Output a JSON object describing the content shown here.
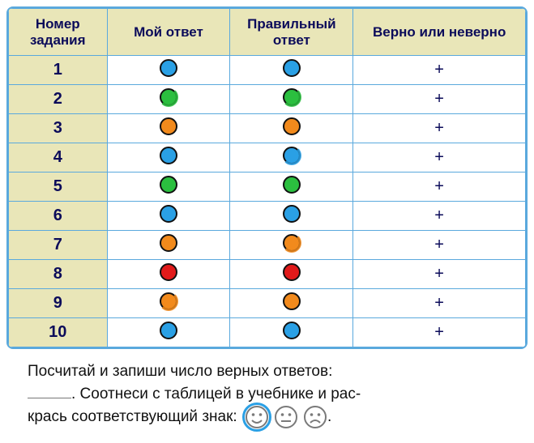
{
  "colors": {
    "blue": "#2aa0e5",
    "green": "#2bbf3f",
    "orange": "#f28a1c",
    "red": "#e11a1a",
    "header_bg": "#e9e6b8",
    "header_text": "#0b0b5a",
    "border": "#5aa9dd"
  },
  "table": {
    "headers": {
      "num": "Номер задания",
      "my": "Мой ответ",
      "correct": "Правильный ответ",
      "check": "Верно или неверно"
    },
    "rows": [
      {
        "n": "1",
        "my": "blue",
        "my_style": "fill",
        "correct": "blue",
        "correct_style": "fill",
        "mark": "+"
      },
      {
        "n": "2",
        "my": "green",
        "my_style": "scribble",
        "correct": "green",
        "correct_style": "scribble",
        "mark": "+"
      },
      {
        "n": "3",
        "my": "orange",
        "my_style": "fill",
        "correct": "orange",
        "correct_style": "fill",
        "mark": "+"
      },
      {
        "n": "4",
        "my": "blue",
        "my_style": "fill",
        "correct": "blue",
        "correct_style": "scribble",
        "mark": "+"
      },
      {
        "n": "5",
        "my": "green",
        "my_style": "fill",
        "correct": "green",
        "correct_style": "fill",
        "mark": "+"
      },
      {
        "n": "6",
        "my": "blue",
        "my_style": "fill",
        "correct": "blue",
        "correct_style": "fill",
        "mark": "+"
      },
      {
        "n": "7",
        "my": "orange",
        "my_style": "fill",
        "correct": "orange",
        "correct_style": "scribble",
        "mark": "+"
      },
      {
        "n": "8",
        "my": "red",
        "my_style": "fill",
        "correct": "red",
        "correct_style": "fill",
        "mark": "+"
      },
      {
        "n": "9",
        "my": "orange",
        "my_style": "scribble",
        "correct": "orange",
        "correct_style": "fill",
        "mark": "+"
      },
      {
        "n": "10",
        "my": "blue",
        "my_style": "fill",
        "correct": "blue",
        "correct_style": "fill",
        "mark": "+"
      }
    ]
  },
  "footer": {
    "line1_a": "Посчитай и запиши число верных ответов:",
    "line2_a": ". Соотнеси с таблицей в учебнике и рас-",
    "line3_a": "крась соответствующий знак:",
    "period": "."
  },
  "smileys": {
    "selected_index": 0,
    "face_color": "#7a7a7a",
    "ring_color": "#2aa0e5"
  }
}
